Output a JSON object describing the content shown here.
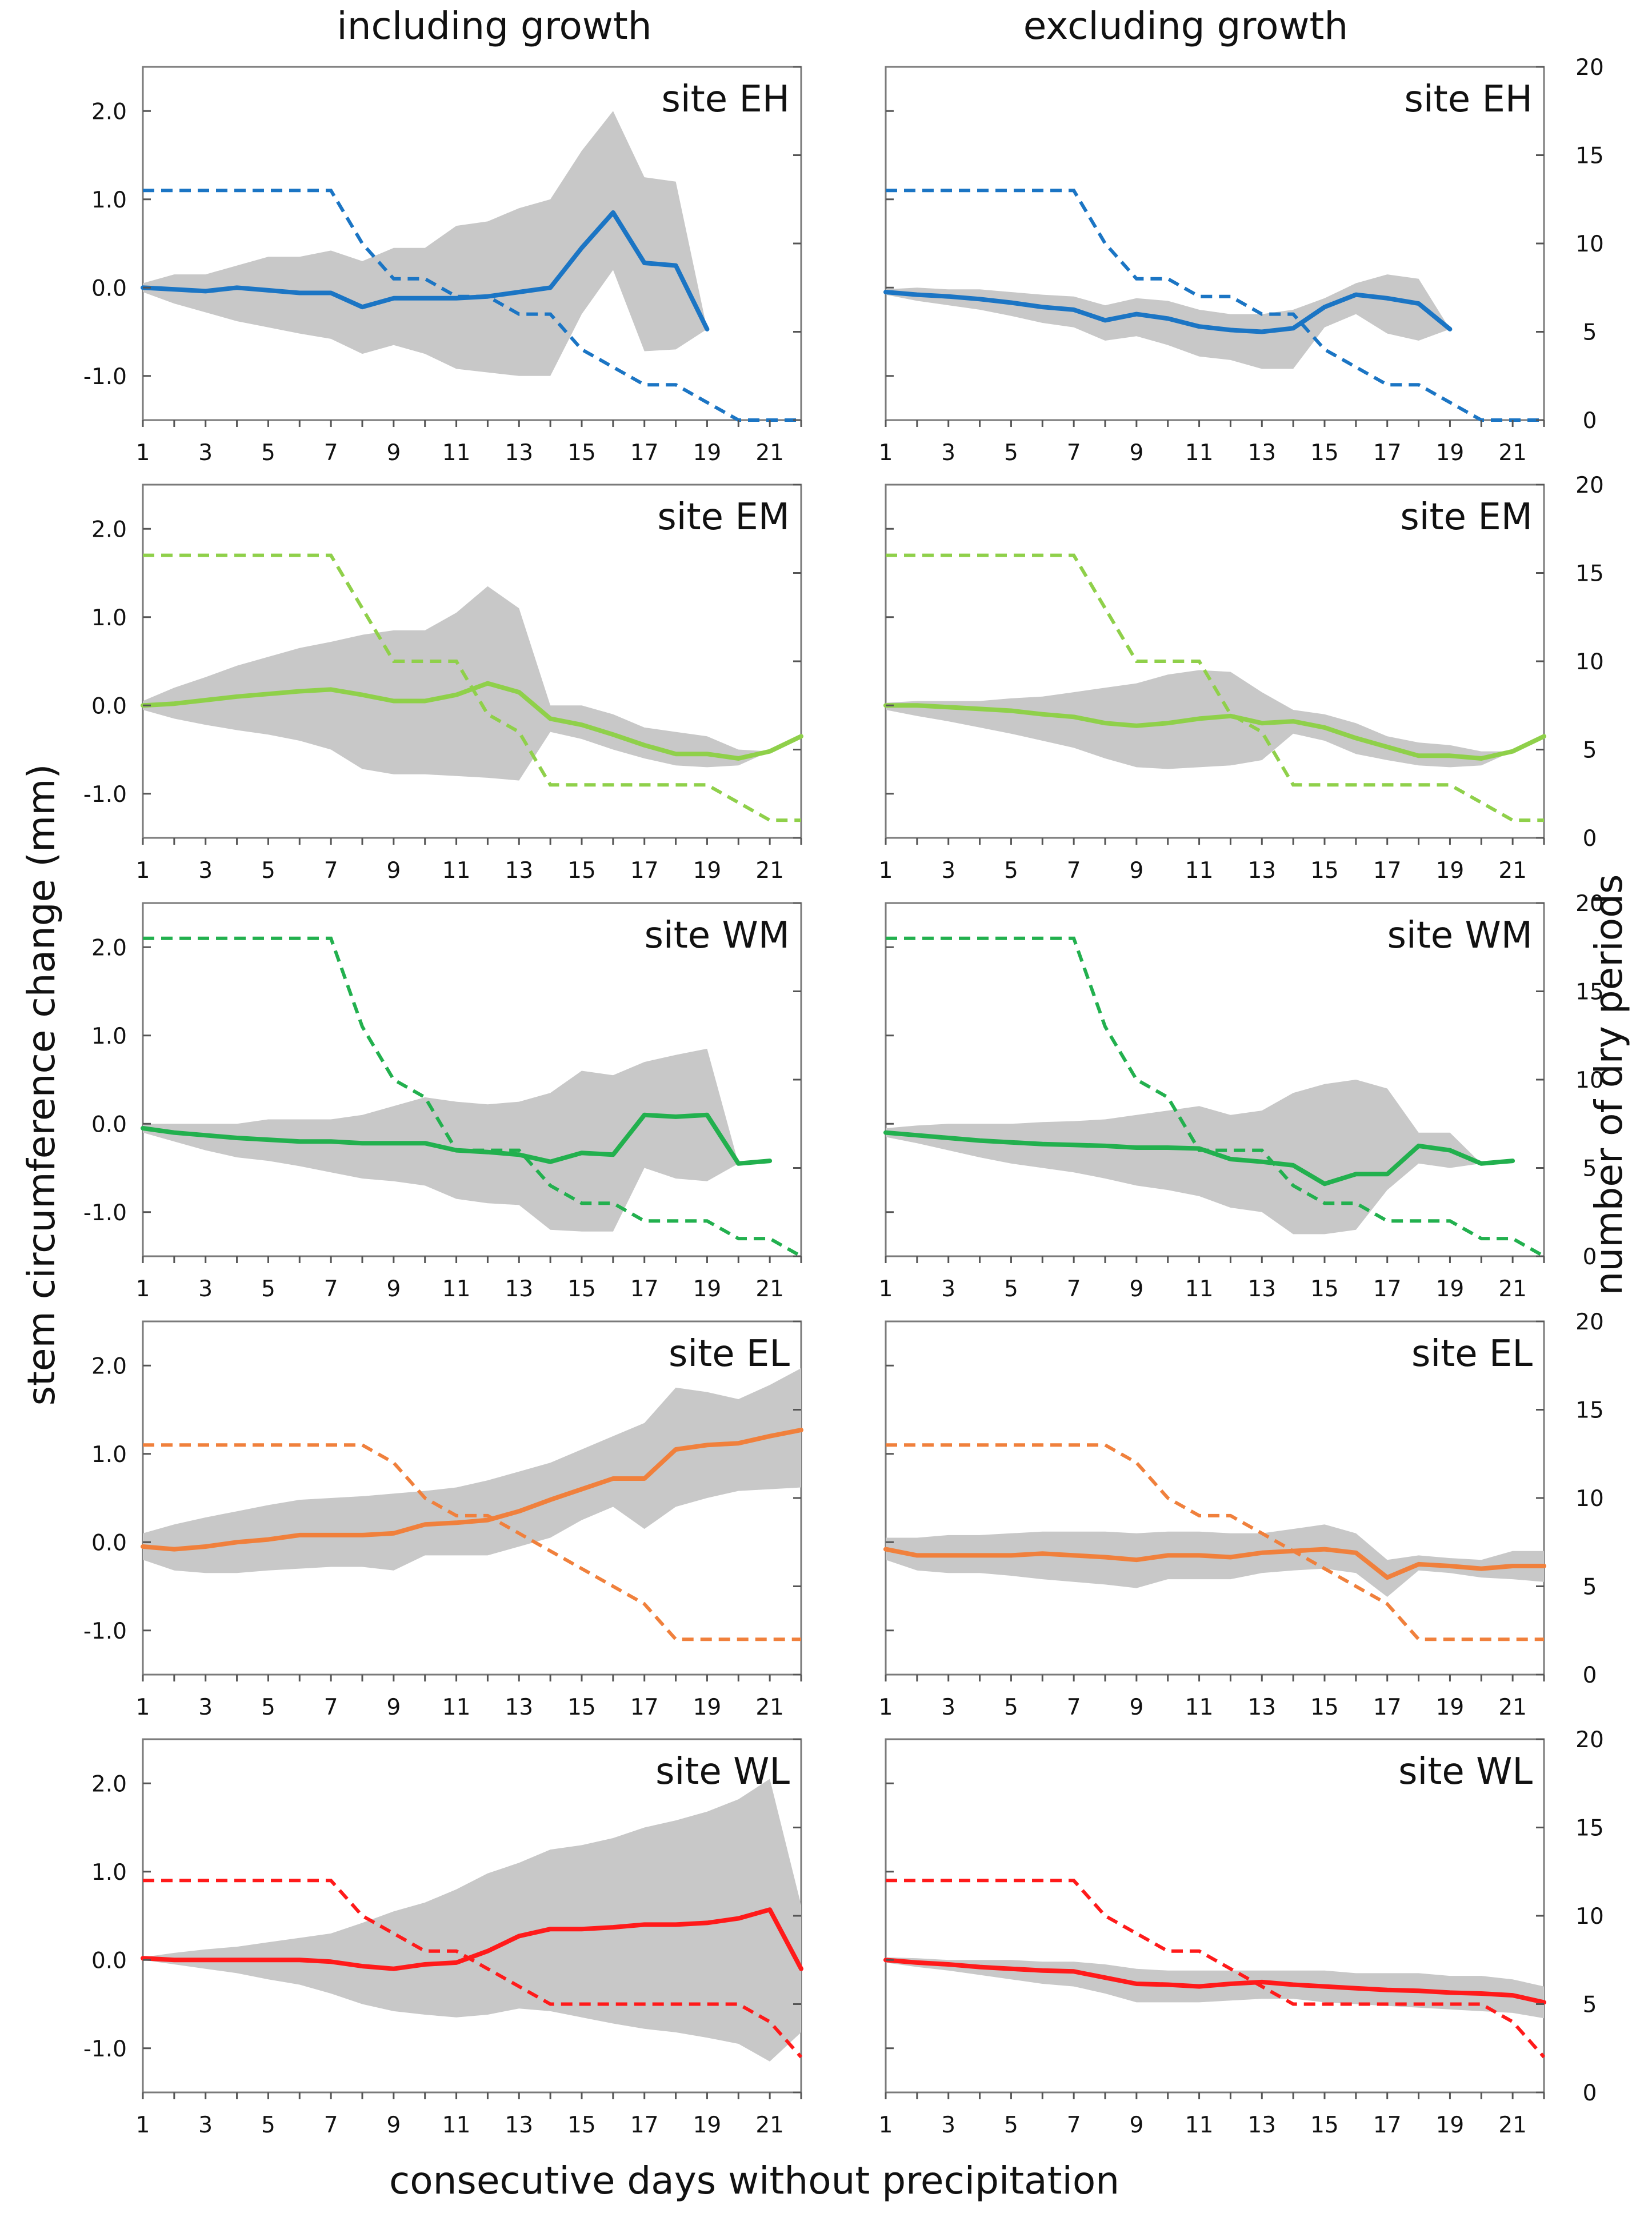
{
  "figure": {
    "col_titles": [
      "including growth",
      "excluding growth"
    ],
    "left_axis_label": "stem circumference change (mm)",
    "right_axis_label": "number of dry periods",
    "x_axis_label": "consecutive days without precipitation"
  },
  "axes": {
    "x_range": [
      1,
      22
    ],
    "x_tick_labels": [
      "1",
      "3",
      "5",
      "7",
      "9",
      "11",
      "13",
      "15",
      "17",
      "19",
      "21"
    ],
    "y_left_range": [
      -1.5,
      2.5
    ],
    "y_left_tick_labels": [
      "2.0",
      "1.0",
      "0.0",
      "-1.0"
    ],
    "y_right_range": [
      0,
      20
    ],
    "y_right_tick_labels": [
      "20",
      "15",
      "10",
      "5",
      "0"
    ]
  },
  "chart_data": [
    {
      "type": "line",
      "site": "site EH",
      "panel": "including growth",
      "color": "#1b75c4",
      "x": [
        1,
        2,
        3,
        4,
        5,
        6,
        7,
        8,
        9,
        10,
        11,
        12,
        13,
        14,
        15,
        16,
        17,
        18,
        19
      ],
      "mean": [
        0,
        -0.02,
        -0.04,
        0,
        -0.03,
        -0.06,
        -0.06,
        -0.22,
        -0.12,
        -0.12,
        -0.12,
        -0.1,
        -0.05,
        0,
        0.45,
        0.85,
        0.28,
        0.25,
        -0.47
      ],
      "band_upper": [
        0.05,
        0.15,
        0.15,
        0.25,
        0.35,
        0.35,
        0.42,
        0.3,
        0.45,
        0.45,
        0.7,
        0.75,
        0.9,
        1.0,
        1.55,
        2.0,
        1.25,
        1.2,
        -0.47
      ],
      "band_lower": [
        -0.05,
        -0.18,
        -0.28,
        -0.38,
        -0.45,
        -0.52,
        -0.58,
        -0.75,
        -0.65,
        -0.75,
        -0.92,
        -0.96,
        -1.0,
        -1.0,
        -0.3,
        0.2,
        -0.72,
        -0.7,
        -0.47
      ],
      "dry_periods": [
        13,
        13,
        13,
        13,
        13,
        13,
        13,
        10,
        8,
        8,
        7,
        7,
        6,
        6,
        4,
        3,
        2,
        2,
        1,
        0,
        0,
        0
      ]
    },
    {
      "type": "line",
      "site": "site EH",
      "panel": "excluding growth",
      "color": "#1b75c4",
      "x": [
        1,
        2,
        3,
        4,
        5,
        6,
        7,
        8,
        9,
        10,
        11,
        12,
        13,
        14,
        15,
        16,
        17,
        18,
        19
      ],
      "mean": [
        -0.05,
        -0.08,
        -0.1,
        -0.13,
        -0.17,
        -0.22,
        -0.25,
        -0.37,
        -0.3,
        -0.35,
        -0.44,
        -0.48,
        -0.5,
        -0.46,
        -0.22,
        -0.08,
        -0.12,
        -0.18,
        -0.47
      ],
      "band_upper": [
        -0.02,
        0.0,
        -0.02,
        -0.02,
        -0.05,
        -0.08,
        -0.1,
        -0.2,
        -0.12,
        -0.15,
        -0.25,
        -0.3,
        -0.3,
        -0.25,
        -0.12,
        0.05,
        0.15,
        0.1,
        -0.47
      ],
      "band_lower": [
        -0.08,
        -0.15,
        -0.2,
        -0.25,
        -0.32,
        -0.4,
        -0.45,
        -0.6,
        -0.55,
        -0.65,
        -0.78,
        -0.82,
        -0.92,
        -0.92,
        -0.45,
        -0.3,
        -0.52,
        -0.6,
        -0.47
      ],
      "dry_periods": [
        13,
        13,
        13,
        13,
        13,
        13,
        13,
        10,
        8,
        8,
        7,
        7,
        6,
        6,
        4,
        3,
        2,
        2,
        1,
        0,
        0,
        0
      ]
    },
    {
      "type": "line",
      "site": "site EM",
      "panel": "including growth",
      "color": "#8fd04a",
      "x": [
        1,
        2,
        3,
        4,
        5,
        6,
        7,
        8,
        9,
        10,
        11,
        12,
        13,
        14,
        15,
        16,
        17,
        18,
        19,
        20,
        21,
        22
      ],
      "mean": [
        0,
        0.02,
        0.06,
        0.1,
        0.13,
        0.16,
        0.18,
        0.12,
        0.05,
        0.05,
        0.12,
        0.25,
        0.15,
        -0.15,
        -0.22,
        -0.33,
        -0.45,
        -0.55,
        -0.55,
        -0.6,
        -0.52,
        -0.35
      ],
      "band_upper": [
        0.05,
        0.2,
        0.32,
        0.45,
        0.55,
        0.65,
        0.72,
        0.8,
        0.85,
        0.85,
        1.05,
        1.35,
        1.1,
        0.0,
        0.0,
        -0.1,
        -0.25,
        -0.3,
        -0.35,
        -0.5,
        -0.52,
        -0.35
      ],
      "band_lower": [
        -0.05,
        -0.15,
        -0.22,
        -0.28,
        -0.33,
        -0.4,
        -0.5,
        -0.72,
        -0.78,
        -0.78,
        -0.8,
        -0.82,
        -0.85,
        -0.3,
        -0.38,
        -0.5,
        -0.6,
        -0.68,
        -0.7,
        -0.68,
        -0.52,
        -0.35
      ],
      "dry_periods": [
        16,
        16,
        16,
        16,
        16,
        16,
        16,
        13,
        10,
        10,
        10,
        7,
        6,
        3,
        3,
        3,
        3,
        3,
        3,
        2,
        1,
        1
      ]
    },
    {
      "type": "line",
      "site": "site EM",
      "panel": "excluding growth",
      "color": "#8fd04a",
      "x": [
        1,
        2,
        3,
        4,
        5,
        6,
        7,
        8,
        9,
        10,
        11,
        12,
        13,
        14,
        15,
        16,
        17,
        18,
        19,
        20,
        21,
        22
      ],
      "mean": [
        0,
        0,
        -0.02,
        -0.04,
        -0.06,
        -0.1,
        -0.13,
        -0.2,
        -0.23,
        -0.2,
        -0.15,
        -0.12,
        -0.2,
        -0.18,
        -0.25,
        -0.37,
        -0.47,
        -0.57,
        -0.57,
        -0.6,
        -0.52,
        -0.35
      ],
      "band_upper": [
        0.03,
        0.05,
        0.05,
        0.05,
        0.08,
        0.1,
        0.15,
        0.2,
        0.25,
        0.35,
        0.4,
        0.38,
        0.15,
        -0.05,
        -0.1,
        -0.2,
        -0.35,
        -0.42,
        -0.45,
        -0.52,
        -0.52,
        -0.35
      ],
      "band_lower": [
        -0.05,
        -0.12,
        -0.18,
        -0.25,
        -0.32,
        -0.4,
        -0.48,
        -0.6,
        -0.7,
        -0.72,
        -0.7,
        -0.68,
        -0.62,
        -0.32,
        -0.4,
        -0.55,
        -0.62,
        -0.68,
        -0.7,
        -0.68,
        -0.52,
        -0.35
      ],
      "dry_periods": [
        16,
        16,
        16,
        16,
        16,
        16,
        16,
        13,
        10,
        10,
        10,
        7,
        6,
        3,
        3,
        3,
        3,
        3,
        3,
        2,
        1,
        1
      ]
    },
    {
      "type": "line",
      "site": "site WM",
      "panel": "including growth",
      "color": "#22b04e",
      "x": [
        1,
        2,
        3,
        4,
        5,
        6,
        7,
        8,
        9,
        10,
        11,
        12,
        13,
        14,
        15,
        16,
        17,
        18,
        19,
        20,
        21
      ],
      "mean": [
        -0.05,
        -0.1,
        -0.13,
        -0.16,
        -0.18,
        -0.2,
        -0.2,
        -0.22,
        -0.22,
        -0.22,
        -0.3,
        -0.32,
        -0.35,
        -0.43,
        -0.33,
        -0.35,
        0.1,
        0.08,
        0.1,
        -0.45,
        -0.42
      ],
      "band_upper": [
        0.0,
        0.0,
        0.0,
        0.0,
        0.05,
        0.05,
        0.05,
        0.1,
        0.2,
        0.3,
        0.25,
        0.22,
        0.25,
        0.35,
        0.6,
        0.55,
        0.7,
        0.78,
        0.85,
        -0.45,
        -0.42
      ],
      "band_lower": [
        -0.1,
        -0.2,
        -0.3,
        -0.38,
        -0.42,
        -0.48,
        -0.55,
        -0.62,
        -0.65,
        -0.7,
        -0.85,
        -0.9,
        -0.92,
        -1.2,
        -1.22,
        -1.22,
        -0.5,
        -0.62,
        -0.65,
        -0.45,
        -0.42
      ],
      "dry_periods": [
        18,
        18,
        18,
        18,
        18,
        18,
        18,
        13,
        10,
        9,
        6,
        6,
        6,
        4,
        3,
        3,
        2,
        2,
        2,
        1,
        1,
        0
      ]
    },
    {
      "type": "line",
      "site": "site WM",
      "panel": "excluding growth",
      "color": "#22b04e",
      "x": [
        1,
        2,
        3,
        4,
        5,
        6,
        7,
        8,
        9,
        10,
        11,
        12,
        13,
        14,
        15,
        16,
        17,
        18,
        19,
        20,
        21
      ],
      "mean": [
        -0.1,
        -0.13,
        -0.16,
        -0.19,
        -0.21,
        -0.23,
        -0.24,
        -0.25,
        -0.27,
        -0.27,
        -0.28,
        -0.4,
        -0.43,
        -0.47,
        -0.68,
        -0.57,
        -0.57,
        -0.25,
        -0.3,
        -0.45,
        -0.42
      ],
      "band_upper": [
        -0.05,
        -0.02,
        0.0,
        0.0,
        0.0,
        0.02,
        0.03,
        0.05,
        0.1,
        0.15,
        0.2,
        0.1,
        0.15,
        0.35,
        0.45,
        0.5,
        0.4,
        -0.1,
        -0.1,
        -0.45,
        -0.42
      ],
      "band_lower": [
        -0.15,
        -0.22,
        -0.3,
        -0.38,
        -0.45,
        -0.5,
        -0.55,
        -0.62,
        -0.7,
        -0.75,
        -0.82,
        -0.95,
        -1.0,
        -1.25,
        -1.25,
        -1.2,
        -0.75,
        -0.45,
        -0.5,
        -0.45,
        -0.42
      ],
      "dry_periods": [
        18,
        18,
        18,
        18,
        18,
        18,
        18,
        13,
        10,
        9,
        6,
        6,
        6,
        4,
        3,
        3,
        2,
        2,
        2,
        1,
        1,
        0
      ]
    },
    {
      "type": "line",
      "site": "site EL",
      "panel": "including growth",
      "color": "#f0803c",
      "x": [
        1,
        2,
        3,
        4,
        5,
        6,
        7,
        8,
        9,
        10,
        11,
        12,
        13,
        14,
        15,
        16,
        17,
        18,
        19,
        20,
        21,
        22
      ],
      "mean": [
        -0.05,
        -0.08,
        -0.05,
        0.0,
        0.03,
        0.08,
        0.08,
        0.08,
        0.1,
        0.2,
        0.22,
        0.25,
        0.35,
        0.48,
        0.6,
        0.72,
        0.72,
        1.05,
        1.1,
        1.12,
        1.2,
        1.27
      ],
      "band_upper": [
        0.1,
        0.2,
        0.28,
        0.35,
        0.42,
        0.48,
        0.5,
        0.52,
        0.55,
        0.58,
        0.62,
        0.7,
        0.8,
        0.9,
        1.05,
        1.2,
        1.35,
        1.75,
        1.7,
        1.62,
        1.78,
        1.97
      ],
      "band_lower": [
        -0.2,
        -0.32,
        -0.35,
        -0.35,
        -0.32,
        -0.3,
        -0.28,
        -0.28,
        -0.32,
        -0.15,
        -0.15,
        -0.15,
        -0.05,
        0.05,
        0.25,
        0.4,
        0.15,
        0.4,
        0.5,
        0.58,
        0.6,
        0.62
      ],
      "dry_periods": [
        13,
        13,
        13,
        13,
        13,
        13,
        13,
        13,
        12,
        10,
        9,
        9,
        8,
        7,
        6,
        5,
        4,
        2,
        2,
        2,
        2,
        2
      ]
    },
    {
      "type": "line",
      "site": "site EL",
      "panel": "excluding growth",
      "color": "#f0803c",
      "x": [
        1,
        2,
        3,
        4,
        5,
        6,
        7,
        8,
        9,
        10,
        11,
        12,
        13,
        14,
        15,
        16,
        17,
        18,
        19,
        20,
        21,
        22
      ],
      "mean": [
        -0.08,
        -0.15,
        -0.15,
        -0.15,
        -0.15,
        -0.13,
        -0.15,
        -0.17,
        -0.2,
        -0.15,
        -0.15,
        -0.17,
        -0.12,
        -0.1,
        -0.08,
        -0.12,
        -0.4,
        -0.25,
        -0.27,
        -0.3,
        -0.27,
        -0.27
      ],
      "band_upper": [
        0.05,
        0.05,
        0.08,
        0.08,
        0.1,
        0.12,
        0.12,
        0.12,
        0.1,
        0.12,
        0.12,
        0.1,
        0.1,
        0.15,
        0.2,
        0.1,
        -0.2,
        -0.15,
        -0.18,
        -0.2,
        -0.1,
        -0.1
      ],
      "band_lower": [
        -0.2,
        -0.32,
        -0.35,
        -0.35,
        -0.38,
        -0.42,
        -0.45,
        -0.48,
        -0.52,
        -0.42,
        -0.42,
        -0.42,
        -0.35,
        -0.32,
        -0.3,
        -0.35,
        -0.62,
        -0.32,
        -0.35,
        -0.4,
        -0.42,
        -0.45
      ],
      "dry_periods": [
        13,
        13,
        13,
        13,
        13,
        13,
        13,
        13,
        12,
        10,
        9,
        9,
        8,
        7,
        6,
        5,
        4,
        2,
        2,
        2,
        2,
        2
      ]
    },
    {
      "type": "line",
      "site": "site WL",
      "panel": "including growth",
      "color": "#ff1a1a",
      "x": [
        1,
        2,
        3,
        4,
        5,
        6,
        7,
        8,
        9,
        10,
        11,
        12,
        13,
        14,
        15,
        16,
        17,
        18,
        19,
        20,
        21,
        22
      ],
      "mean": [
        0.02,
        0.0,
        0.0,
        0.0,
        0.0,
        0.0,
        -0.02,
        -0.07,
        -0.1,
        -0.05,
        -0.03,
        0.1,
        0.27,
        0.35,
        0.35,
        0.37,
        0.4,
        0.4,
        0.42,
        0.47,
        0.57,
        -0.1
      ],
      "band_upper": [
        0.03,
        0.08,
        0.12,
        0.15,
        0.2,
        0.25,
        0.3,
        0.42,
        0.55,
        0.65,
        0.8,
        0.98,
        1.1,
        1.25,
        1.3,
        1.38,
        1.5,
        1.58,
        1.68,
        1.82,
        2.05,
        0.62
      ],
      "band_lower": [
        0.0,
        -0.05,
        -0.1,
        -0.15,
        -0.22,
        -0.28,
        -0.38,
        -0.5,
        -0.58,
        -0.62,
        -0.65,
        -0.62,
        -0.55,
        -0.58,
        -0.65,
        -0.72,
        -0.78,
        -0.82,
        -0.88,
        -0.95,
        -1.15,
        -0.82
      ],
      "dry_periods": [
        12,
        12,
        12,
        12,
        12,
        12,
        12,
        10,
        9,
        8,
        8,
        7,
        6,
        5,
        5,
        5,
        5,
        5,
        5,
        5,
        4,
        2
      ]
    },
    {
      "type": "line",
      "site": "site WL",
      "panel": "excluding growth",
      "color": "#ff1a1a",
      "x": [
        1,
        2,
        3,
        4,
        5,
        6,
        7,
        8,
        9,
        10,
        11,
        12,
        13,
        14,
        15,
        16,
        17,
        18,
        19,
        20,
        21,
        22
      ],
      "mean": [
        0,
        -0.03,
        -0.05,
        -0.08,
        -0.1,
        -0.12,
        -0.13,
        -0.2,
        -0.27,
        -0.28,
        -0.3,
        -0.27,
        -0.25,
        -0.28,
        -0.3,
        -0.32,
        -0.34,
        -0.35,
        -0.37,
        -0.38,
        -0.4,
        -0.48
      ],
      "band_upper": [
        0.03,
        0.02,
        0.0,
        0.0,
        0.0,
        -0.02,
        -0.02,
        -0.05,
        -0.1,
        -0.12,
        -0.12,
        -0.12,
        -0.12,
        -0.12,
        -0.12,
        -0.15,
        -0.15,
        -0.15,
        -0.18,
        -0.18,
        -0.22,
        -0.3
      ],
      "band_lower": [
        -0.03,
        -0.08,
        -0.12,
        -0.17,
        -0.22,
        -0.27,
        -0.3,
        -0.38,
        -0.48,
        -0.48,
        -0.48,
        -0.46,
        -0.44,
        -0.44,
        -0.48,
        -0.5,
        -0.52,
        -0.54,
        -0.56,
        -0.58,
        -0.6,
        -0.66
      ],
      "dry_periods": [
        12,
        12,
        12,
        12,
        12,
        12,
        12,
        10,
        9,
        8,
        8,
        7,
        6,
        5,
        5,
        5,
        5,
        5,
        5,
        5,
        4,
        2
      ]
    }
  ]
}
